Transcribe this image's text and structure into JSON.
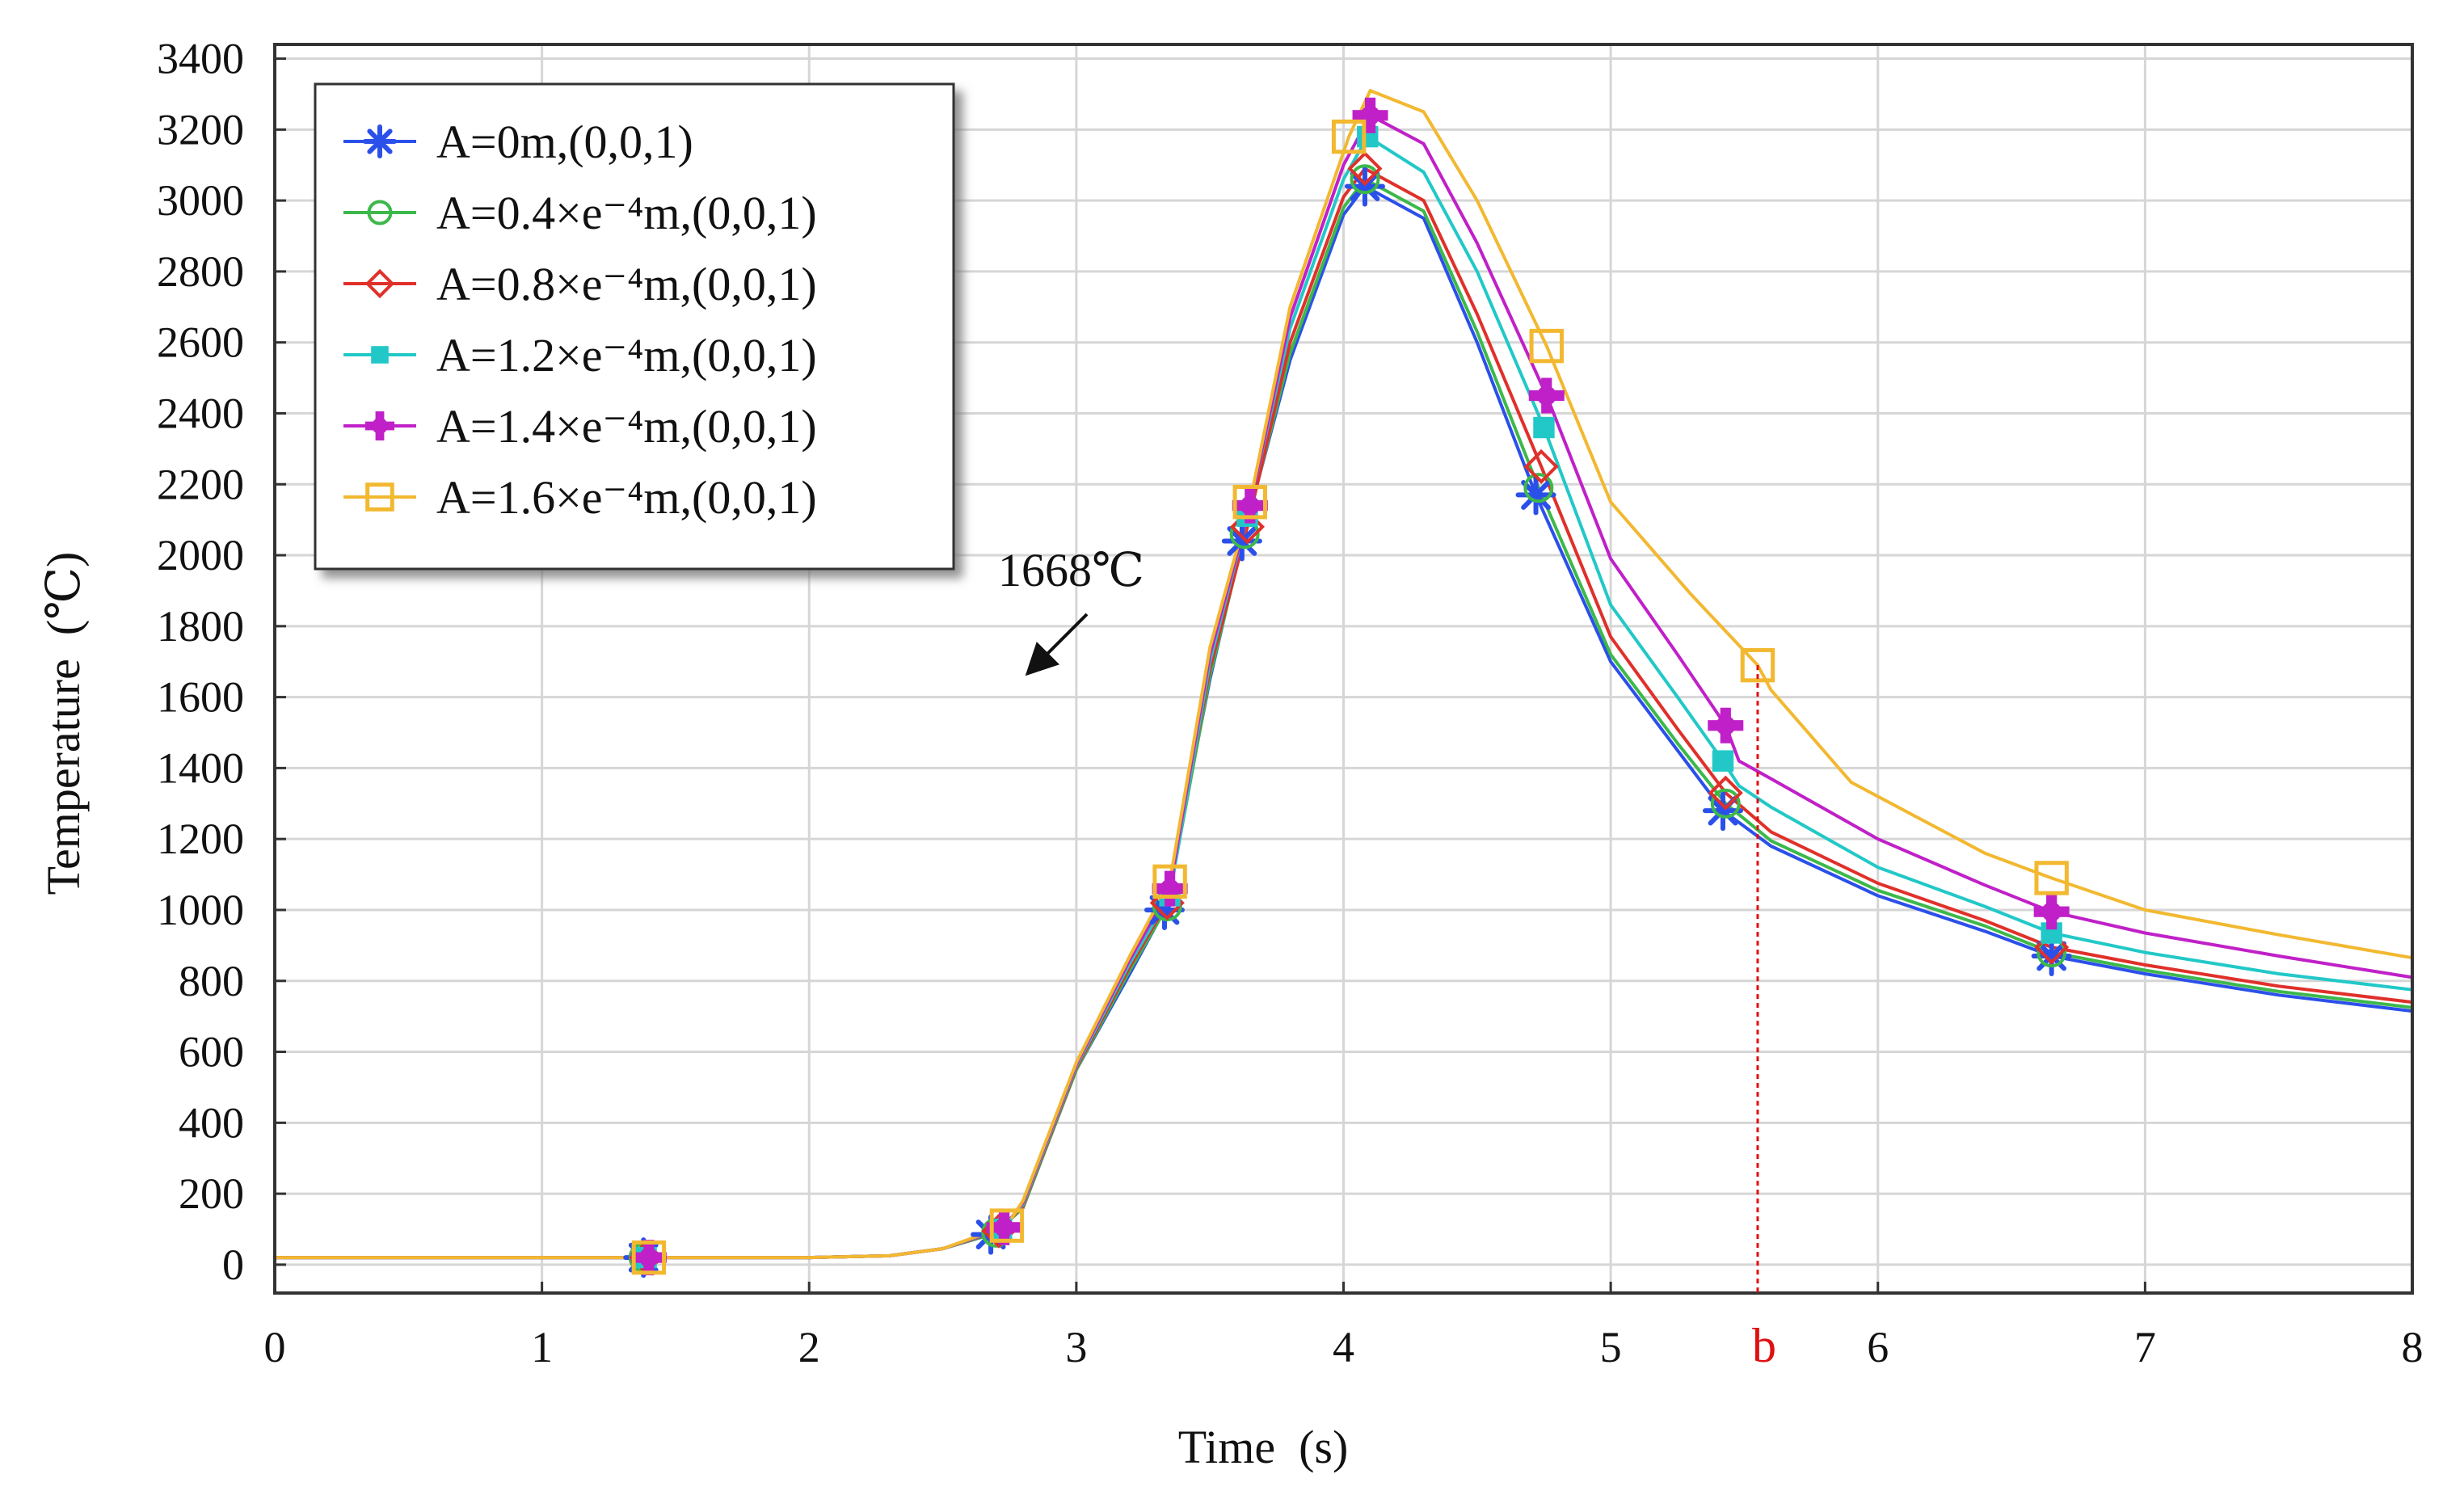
{
  "chart_data": {
    "type": "line",
    "xlabel": "Time  (s)",
    "ylabel": "Temperature  (℃)",
    "xlim": [
      0,
      8
    ],
    "ylim": [
      -80,
      3440
    ],
    "xticks": [
      "0",
      "1",
      "2",
      "3",
      "4",
      "5",
      "6",
      "7",
      "8"
    ],
    "yticks": [
      "0",
      "200",
      "400",
      "600",
      "800",
      "1000",
      "1200",
      "1400",
      "1600",
      "1800",
      "2000",
      "2200",
      "2400",
      "2600",
      "2800",
      "3000",
      "3200",
      "3400"
    ],
    "grid": true,
    "legend_position": "top-left",
    "annotation": {
      "text": "1668℃"
    },
    "marker_line": {
      "label": "b",
      "x": 5.55
    },
    "series": [
      {
        "name": "A=0m,(0,0,1)",
        "color": "#2b50ea",
        "marker": "star",
        "points": [
          [
            0,
            20
          ],
          [
            1,
            20
          ],
          [
            1.38,
            20
          ],
          [
            2,
            20
          ],
          [
            2.3,
            25
          ],
          [
            2.5,
            45
          ],
          [
            2.68,
            85
          ],
          [
            2.8,
            160
          ],
          [
            3,
            550
          ],
          [
            3.2,
            820
          ],
          [
            3.33,
            1000
          ],
          [
            3.5,
            1650
          ],
          [
            3.62,
            2040
          ],
          [
            3.8,
            2550
          ],
          [
            4,
            2960
          ],
          [
            4.08,
            3040
          ],
          [
            4.3,
            2950
          ],
          [
            4.5,
            2600
          ],
          [
            4.72,
            2170
          ],
          [
            5,
            1700
          ],
          [
            5.25,
            1450
          ],
          [
            5.42,
            1280
          ],
          [
            5.6,
            1180
          ],
          [
            6,
            1040
          ],
          [
            6.4,
            940
          ],
          [
            6.65,
            870
          ],
          [
            7,
            820
          ],
          [
            7.5,
            760
          ],
          [
            8,
            715
          ]
        ],
        "markers_at": [
          1.38,
          2.68,
          3.33,
          3.62,
          4.08,
          4.72,
          5.42,
          6.65
        ]
      },
      {
        "name": "A=0.4×e⁻⁴m,(0,0,1)",
        "color": "#3db84a",
        "marker": "circle",
        "points": [
          [
            0,
            20
          ],
          [
            1,
            20
          ],
          [
            1.38,
            20
          ],
          [
            2,
            20
          ],
          [
            2.3,
            25
          ],
          [
            2.5,
            45
          ],
          [
            2.7,
            90
          ],
          [
            2.8,
            160
          ],
          [
            3,
            550
          ],
          [
            3.2,
            830
          ],
          [
            3.34,
            1010
          ],
          [
            3.5,
            1660
          ],
          [
            3.63,
            2060
          ],
          [
            3.8,
            2570
          ],
          [
            4,
            2980
          ],
          [
            4.08,
            3060
          ],
          [
            4.3,
            2970
          ],
          [
            4.5,
            2630
          ],
          [
            4.73,
            2190
          ],
          [
            5,
            1720
          ],
          [
            5.25,
            1470
          ],
          [
            5.43,
            1300
          ],
          [
            5.6,
            1195
          ],
          [
            6,
            1055
          ],
          [
            6.4,
            955
          ],
          [
            6.65,
            880
          ],
          [
            7,
            830
          ],
          [
            7.5,
            770
          ],
          [
            8,
            725
          ]
        ],
        "markers_at": [
          1.38,
          2.7,
          3.34,
          3.63,
          4.08,
          4.73,
          5.43,
          6.65
        ]
      },
      {
        "name": "A=0.8×e⁻⁴m,(0,0,1)",
        "color": "#e0302a",
        "marker": "diamond",
        "points": [
          [
            0,
            20
          ],
          [
            1,
            20
          ],
          [
            1.39,
            20
          ],
          [
            2,
            20
          ],
          [
            2.3,
            25
          ],
          [
            2.5,
            45
          ],
          [
            2.71,
            95
          ],
          [
            2.8,
            165
          ],
          [
            3,
            555
          ],
          [
            3.2,
            840
          ],
          [
            3.34,
            1020
          ],
          [
            3.5,
            1680
          ],
          [
            3.64,
            2080
          ],
          [
            3.8,
            2600
          ],
          [
            4,
            3010
          ],
          [
            4.08,
            3090
          ],
          [
            4.3,
            3000
          ],
          [
            4.5,
            2680
          ],
          [
            4.74,
            2250
          ],
          [
            5,
            1770
          ],
          [
            5.25,
            1510
          ],
          [
            5.43,
            1330
          ],
          [
            5.6,
            1220
          ],
          [
            6,
            1075
          ],
          [
            6.4,
            970
          ],
          [
            6.65,
            895
          ],
          [
            7,
            845
          ],
          [
            7.5,
            785
          ],
          [
            8,
            740
          ]
        ],
        "markers_at": [
          1.39,
          2.71,
          3.34,
          3.64,
          4.08,
          4.74,
          5.43,
          6.65
        ]
      },
      {
        "name": "A=1.2×e⁻⁴m,(0,0,1)",
        "color": "#22c8c8",
        "marker": "square-filled",
        "points": [
          [
            0,
            20
          ],
          [
            1,
            20
          ],
          [
            1.39,
            20
          ],
          [
            2,
            20
          ],
          [
            2.3,
            25
          ],
          [
            2.5,
            45
          ],
          [
            2.72,
            100
          ],
          [
            2.8,
            170
          ],
          [
            3,
            560
          ],
          [
            3.2,
            850
          ],
          [
            3.35,
            1040
          ],
          [
            3.5,
            1700
          ],
          [
            3.64,
            2110
          ],
          [
            3.8,
            2640
          ],
          [
            4,
            3060
          ],
          [
            4.09,
            3180
          ],
          [
            4.3,
            3080
          ],
          [
            4.5,
            2800
          ],
          [
            4.75,
            2360
          ],
          [
            5,
            1860
          ],
          [
            5.25,
            1600
          ],
          [
            5.42,
            1420
          ],
          [
            5.48,
            1350
          ],
          [
            5.6,
            1290
          ],
          [
            6,
            1120
          ],
          [
            6.4,
            1010
          ],
          [
            6.65,
            935
          ],
          [
            7,
            880
          ],
          [
            7.5,
            820
          ],
          [
            8,
            775
          ]
        ],
        "markers_at": [
          1.39,
          2.72,
          3.35,
          3.64,
          4.09,
          4.75,
          5.42,
          6.65
        ]
      },
      {
        "name": "A=1.4×e⁻⁴m,(0,0,1)",
        "color": "#c020c8",
        "marker": "plus",
        "points": [
          [
            0,
            20
          ],
          [
            1,
            20
          ],
          [
            1.4,
            20
          ],
          [
            2,
            20
          ],
          [
            2.3,
            25
          ],
          [
            2.5,
            45
          ],
          [
            2.73,
            105
          ],
          [
            2.8,
            175
          ],
          [
            3,
            565
          ],
          [
            3.2,
            860
          ],
          [
            3.35,
            1060
          ],
          [
            3.5,
            1720
          ],
          [
            3.65,
            2140
          ],
          [
            3.8,
            2670
          ],
          [
            4,
            3100
          ],
          [
            4.1,
            3240
          ],
          [
            4.3,
            3160
          ],
          [
            4.5,
            2880
          ],
          [
            4.76,
            2450
          ],
          [
            5,
            1990
          ],
          [
            5.25,
            1720
          ],
          [
            5.43,
            1520
          ],
          [
            5.48,
            1420
          ],
          [
            5.6,
            1370
          ],
          [
            6,
            1200
          ],
          [
            6.4,
            1070
          ],
          [
            6.65,
            995
          ],
          [
            7,
            935
          ],
          [
            7.5,
            870
          ],
          [
            8,
            810
          ]
        ],
        "markers_at": [
          1.4,
          2.73,
          3.35,
          3.65,
          4.1,
          4.76,
          5.43,
          6.65
        ]
      },
      {
        "name": "A=1.6×e⁻⁴m,(0,0,1)",
        "color": "#f2b830",
        "marker": "square",
        "points": [
          [
            0,
            20
          ],
          [
            1,
            20
          ],
          [
            1.4,
            20
          ],
          [
            2,
            20
          ],
          [
            2.3,
            25
          ],
          [
            2.5,
            45
          ],
          [
            2.74,
            110
          ],
          [
            2.8,
            180
          ],
          [
            3,
            570
          ],
          [
            3.2,
            870
          ],
          [
            3.35,
            1080
          ],
          [
            3.5,
            1740
          ],
          [
            3.65,
            2150
          ],
          [
            3.8,
            2700
          ],
          [
            4.02,
            3180
          ],
          [
            4.1,
            3310
          ],
          [
            4.3,
            3250
          ],
          [
            4.5,
            3000
          ],
          [
            4.76,
            2590
          ],
          [
            5,
            2150
          ],
          [
            5.3,
            1890
          ],
          [
            5.55,
            1690
          ],
          [
            5.6,
            1620
          ],
          [
            5.9,
            1360
          ],
          [
            6.4,
            1160
          ],
          [
            6.65,
            1090
          ],
          [
            7,
            1000
          ],
          [
            7.5,
            930
          ],
          [
            8,
            865
          ]
        ],
        "markers_at": [
          1.4,
          2.74,
          3.35,
          3.65,
          4.02,
          4.76,
          5.55,
          6.65
        ]
      }
    ]
  }
}
